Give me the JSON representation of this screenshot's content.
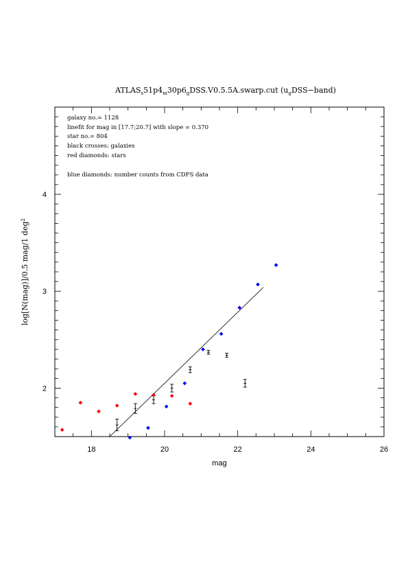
{
  "chart_data": {
    "type": "scatter",
    "title": {
      "prefix": "ATLAS",
      "sub1": "s",
      "mid1": "51p4",
      "sub2": "m",
      "mid2": "30p6",
      "sub3": "g",
      "mid3": "DSS.V0.5.5A.swarp.cut (u",
      "sub4": "g",
      "suffix": "DSS−band)"
    },
    "xlabel": "mag",
    "ylabel": {
      "main": "log[N(mag)]/0.5 mag/1 deg",
      "sup": "2"
    },
    "xlim": [
      17,
      26
    ],
    "ylim": [
      1.5,
      4.9
    ],
    "xticks": [
      18,
      20,
      22,
      24,
      26
    ],
    "yticks": [
      2,
      3,
      4
    ],
    "xtick_labels": [
      "18",
      "20",
      "22",
      "24",
      "26"
    ],
    "ytick_labels": [
      "2",
      "3",
      "4"
    ],
    "annotations": [
      "galaxy no.= 1128",
      "linefit for mag in [17.7;20.7] with slope = 0.370",
      "star no.= 804",
      "black crosses: galaxies",
      "red diamonds: stars",
      "blue diamonds: number counts from CDFS data"
    ],
    "linefit": {
      "x": [
        18.5,
        22.7
      ],
      "y": [
        1.5,
        3.04
      ]
    },
    "series": [
      {
        "color": "#000000",
        "marker": "errorbar",
        "x": [
          18.7,
          19.2,
          19.7,
          20.2,
          20.7,
          21.2,
          21.7,
          22.2
        ],
        "y": [
          1.62,
          1.79,
          1.88,
          2.0,
          2.19,
          2.37,
          2.34,
          2.05
        ],
        "err": [
          0.06,
          0.05,
          0.04,
          0.04,
          0.03,
          0.02,
          0.02,
          0.04
        ]
      },
      {
        "color": "#ff0000",
        "marker": "diamond",
        "x": [
          17.2,
          17.7,
          18.2,
          18.7,
          19.2,
          19.7,
          20.2,
          20.7
        ],
        "y": [
          1.57,
          1.85,
          1.76,
          1.82,
          1.94,
          1.93,
          1.92,
          1.84
        ]
      },
      {
        "color": "#0000ff",
        "marker": "diamond",
        "x": [
          19.05,
          19.55,
          20.05,
          20.55,
          21.05,
          21.55,
          22.05,
          22.55,
          23.05
        ],
        "y": [
          1.49,
          1.59,
          1.81,
          2.05,
          2.4,
          2.56,
          2.83,
          3.07,
          3.27
        ]
      }
    ]
  }
}
